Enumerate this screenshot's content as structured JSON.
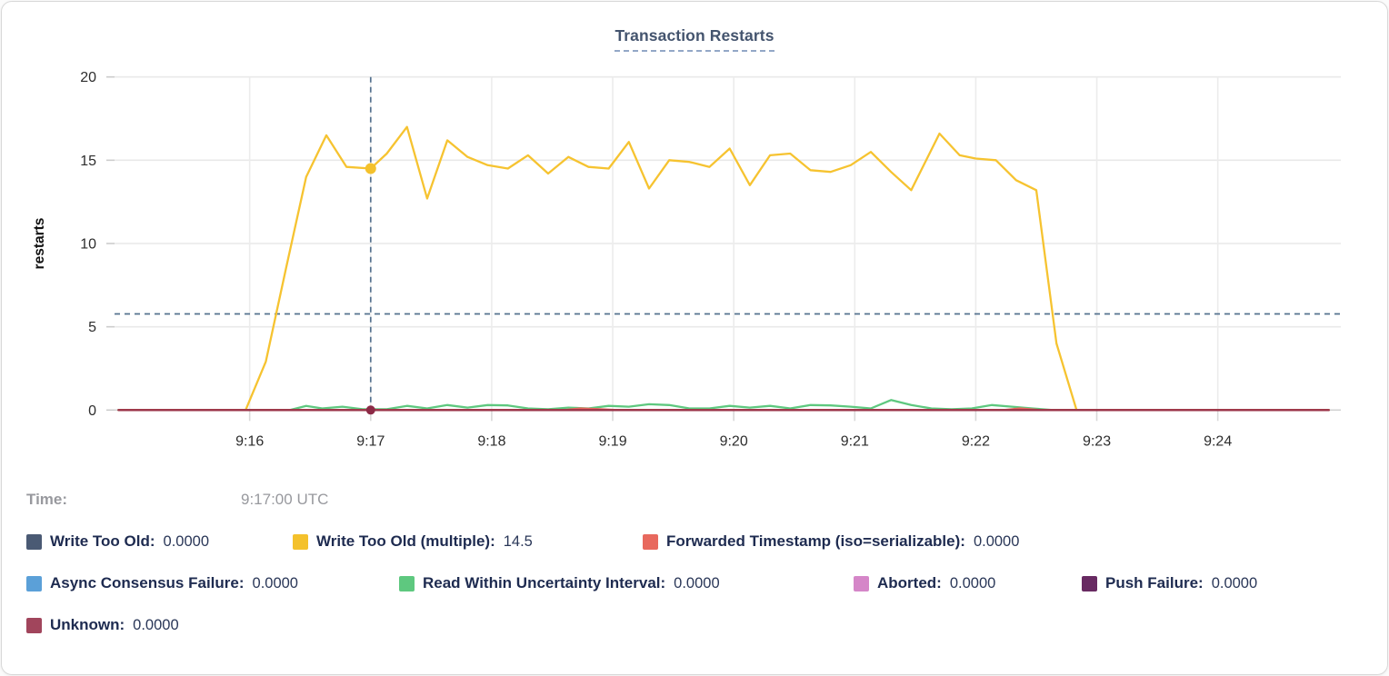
{
  "tooltip": {
    "time_label": "Time:",
    "time_value": "9:17:00 UTC"
  },
  "legend": {
    "items": [
      {
        "label": "Write Too Old:",
        "value": "0.0000",
        "color": "#4a5a74"
      },
      {
        "label": "Write Too Old (multiple):",
        "value": "14.5",
        "color": "#f4c12c"
      },
      {
        "label": "Forwarded Timestamp (iso=serializable):",
        "value": "0.0000",
        "color": "#e8695e"
      },
      {
        "label": "Async Consensus Failure:",
        "value": "0.0000",
        "color": "#5ba0d8"
      },
      {
        "label": "Read Within Uncertainty Interval:",
        "value": "0.0000",
        "color": "#5ec87f"
      },
      {
        "label": "Aborted:",
        "value": "0.0000",
        "color": "#d586c8"
      },
      {
        "label": "Push Failure:",
        "value": "0.0000",
        "color": "#682a62"
      },
      {
        "label": "Unknown:",
        "value": "0.0000",
        "color": "#a1455c"
      }
    ]
  },
  "chart_data": {
    "type": "line",
    "title": "Transaction Restarts",
    "ylabel": "restarts",
    "xlabel": "",
    "ylim": [
      0,
      20
    ],
    "y_ticks": [
      0,
      5,
      10,
      15,
      20
    ],
    "x_ticks": [
      {
        "label": "9:16",
        "time": "9:16:00"
      },
      {
        "label": "9:17",
        "time": "9:17:00"
      },
      {
        "label": "9:18",
        "time": "9:18:00"
      },
      {
        "label": "9:19",
        "time": "9:19:00"
      },
      {
        "label": "9:20",
        "time": "9:20:00"
      },
      {
        "label": "9:21",
        "time": "9:21:00"
      },
      {
        "label": "9:22",
        "time": "9:22:00"
      },
      {
        "label": "9:23",
        "time": "9:23:00"
      },
      {
        "label": "9:24",
        "time": "9:24:00"
      }
    ],
    "x_domain": [
      "9:14:53",
      "9:25:01"
    ],
    "grid": true,
    "legend_position": "bottom",
    "crosshair": {
      "time": "9:17:00",
      "hline_value": 5.77,
      "line_color": "#54718e",
      "dots": [
        {
          "series": "Write Too Old (multiple)",
          "value": 14.5,
          "color": "#f4c12c",
          "r": 6
        },
        {
          "series": "Unknown",
          "value": 0,
          "color": "#8c2a46",
          "r": 5
        }
      ]
    },
    "series": [
      {
        "name": "Write Too Old",
        "color": "#4a5a74",
        "points": [
          [
            "9:14:55",
            0
          ],
          [
            "9:24:55",
            0
          ]
        ]
      },
      {
        "name": "Async Consensus Failure",
        "color": "#5ba0d8",
        "points": [
          [
            "9:14:55",
            0
          ],
          [
            "9:24:55",
            0
          ]
        ]
      },
      {
        "name": "Aborted",
        "color": "#d586c8",
        "points": [
          [
            "9:14:55",
            0
          ],
          [
            "9:24:55",
            0
          ]
        ]
      },
      {
        "name": "Push Failure",
        "color": "#682a62",
        "points": [
          [
            "9:14:55",
            0
          ],
          [
            "9:24:55",
            0
          ]
        ]
      },
      {
        "name": "Write Too Old (multiple)",
        "color": "#f6c330",
        "points": [
          [
            "9:14:55",
            0
          ],
          [
            "9:15:58",
            0
          ],
          [
            "9:16:08",
            2.9
          ],
          [
            "9:16:18",
            8.5
          ],
          [
            "9:16:28",
            14.0
          ],
          [
            "9:16:38",
            16.5
          ],
          [
            "9:16:48",
            14.6
          ],
          [
            "9:17:00",
            14.5
          ],
          [
            "9:17:08",
            15.4
          ],
          [
            "9:17:18",
            17.0
          ],
          [
            "9:17:28",
            12.7
          ],
          [
            "9:17:38",
            16.2
          ],
          [
            "9:17:48",
            15.2
          ],
          [
            "9:17:58",
            14.7
          ],
          [
            "9:18:08",
            14.5
          ],
          [
            "9:18:18",
            15.3
          ],
          [
            "9:18:28",
            14.2
          ],
          [
            "9:18:38",
            15.2
          ],
          [
            "9:18:48",
            14.6
          ],
          [
            "9:18:58",
            14.5
          ],
          [
            "9:19:08",
            16.1
          ],
          [
            "9:19:18",
            13.3
          ],
          [
            "9:19:28",
            15.0
          ],
          [
            "9:19:38",
            14.9
          ],
          [
            "9:19:48",
            14.6
          ],
          [
            "9:19:58",
            15.7
          ],
          [
            "9:20:08",
            13.5
          ],
          [
            "9:20:18",
            15.3
          ],
          [
            "9:20:28",
            15.4
          ],
          [
            "9:20:38",
            14.4
          ],
          [
            "9:20:48",
            14.3
          ],
          [
            "9:20:58",
            14.7
          ],
          [
            "9:21:08",
            15.5
          ],
          [
            "9:21:18",
            14.3
          ],
          [
            "9:21:28",
            13.2
          ],
          [
            "9:21:42",
            16.6
          ],
          [
            "9:21:52",
            15.3
          ],
          [
            "9:22:00",
            15.1
          ],
          [
            "9:22:10",
            15.0
          ],
          [
            "9:22:20",
            13.8
          ],
          [
            "9:22:30",
            13.2
          ],
          [
            "9:22:40",
            4.0
          ],
          [
            "9:22:50",
            0
          ],
          [
            "9:24:55",
            0
          ]
        ]
      },
      {
        "name": "Read Within Uncertainty Interval",
        "color": "#5ec87f",
        "points": [
          [
            "9:14:55",
            0
          ],
          [
            "9:16:20",
            0
          ],
          [
            "9:16:28",
            0.25
          ],
          [
            "9:16:36",
            0.1
          ],
          [
            "9:16:46",
            0.2
          ],
          [
            "9:16:56",
            0.05
          ],
          [
            "9:17:08",
            0.05
          ],
          [
            "9:17:18",
            0.25
          ],
          [
            "9:17:28",
            0.1
          ],
          [
            "9:17:38",
            0.3
          ],
          [
            "9:17:48",
            0.15
          ],
          [
            "9:17:58",
            0.3
          ],
          [
            "9:18:08",
            0.28
          ],
          [
            "9:18:18",
            0.1
          ],
          [
            "9:18:28",
            0.05
          ],
          [
            "9:18:38",
            0.15
          ],
          [
            "9:18:48",
            0.1
          ],
          [
            "9:18:58",
            0.25
          ],
          [
            "9:19:08",
            0.2
          ],
          [
            "9:19:18",
            0.35
          ],
          [
            "9:19:28",
            0.3
          ],
          [
            "9:19:38",
            0.1
          ],
          [
            "9:19:48",
            0.1
          ],
          [
            "9:19:58",
            0.25
          ],
          [
            "9:20:08",
            0.15
          ],
          [
            "9:20:18",
            0.25
          ],
          [
            "9:20:28",
            0.1
          ],
          [
            "9:20:38",
            0.3
          ],
          [
            "9:20:48",
            0.28
          ],
          [
            "9:20:58",
            0.2
          ],
          [
            "9:21:08",
            0.1
          ],
          [
            "9:21:18",
            0.6
          ],
          [
            "9:21:28",
            0.3
          ],
          [
            "9:21:38",
            0.1
          ],
          [
            "9:21:48",
            0.05
          ],
          [
            "9:21:58",
            0.1
          ],
          [
            "9:22:08",
            0.3
          ],
          [
            "9:22:18",
            0.2
          ],
          [
            "9:22:28",
            0.1
          ],
          [
            "9:22:38",
            0
          ],
          [
            "9:24:55",
            0
          ]
        ]
      },
      {
        "name": "Forwarded Timestamp (iso=serializable)",
        "color": "#e8695e",
        "points": [
          [
            "9:14:55",
            0
          ],
          [
            "9:18:36",
            0
          ],
          [
            "9:18:44",
            0.1
          ],
          [
            "9:18:54",
            0.05
          ],
          [
            "9:19:02",
            0
          ],
          [
            "9:22:14",
            0
          ],
          [
            "9:22:22",
            0.1
          ],
          [
            "9:22:32",
            0
          ],
          [
            "9:24:55",
            0
          ]
        ]
      },
      {
        "name": "Unknown",
        "color": "#9b3449",
        "points": [
          [
            "9:14:55",
            0
          ],
          [
            "9:24:55",
            0
          ]
        ]
      }
    ]
  }
}
